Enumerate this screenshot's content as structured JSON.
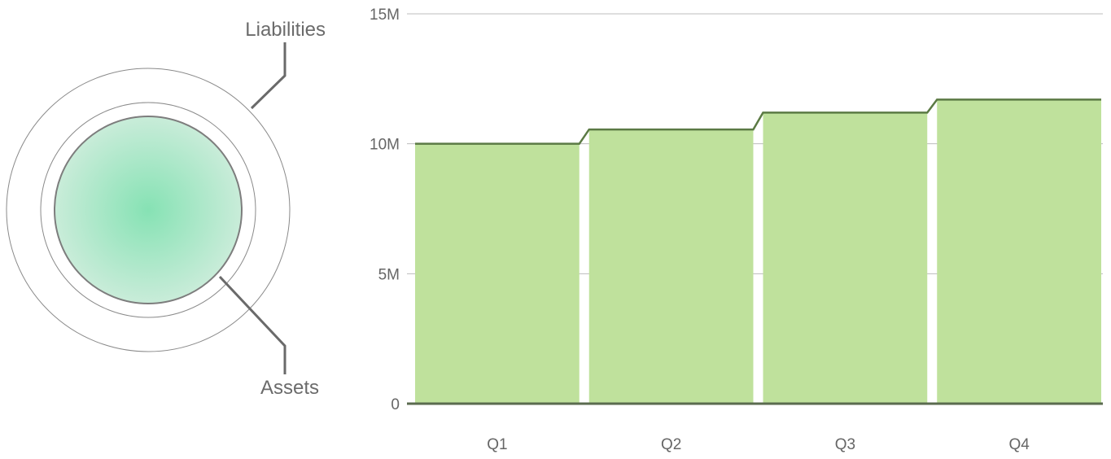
{
  "chart_data": [
    {
      "type": "pie",
      "series": [
        {
          "name": "Liabilities",
          "label": "Liabilities"
        },
        {
          "name": "Assets",
          "label": "Assets"
        }
      ],
      "colors": {
        "assets_center": "#86e2b4",
        "assets_edge": "#c9ecd9",
        "ring_stroke": "#8a8a8a",
        "callout": "#6a6a6a"
      }
    },
    {
      "type": "bar",
      "categories": [
        "Q1",
        "Q2",
        "Q3",
        "Q4"
      ],
      "values": [
        10000000,
        10550000,
        11200000,
        11700000
      ],
      "ylim": [
        0,
        15000000
      ],
      "yticks": [
        {
          "value": 0,
          "label": "0"
        },
        {
          "value": 5000000,
          "label": "5M"
        },
        {
          "value": 10000000,
          "label": "10M"
        },
        {
          "value": 15000000,
          "label": "15M"
        }
      ],
      "grid": true,
      "colors": {
        "bar_fill": "#bfe19c",
        "bar_top": "#5b7a44",
        "baseline": "#5b6b4f",
        "grid": "#bdbdbd",
        "label": "#666666"
      }
    }
  ]
}
